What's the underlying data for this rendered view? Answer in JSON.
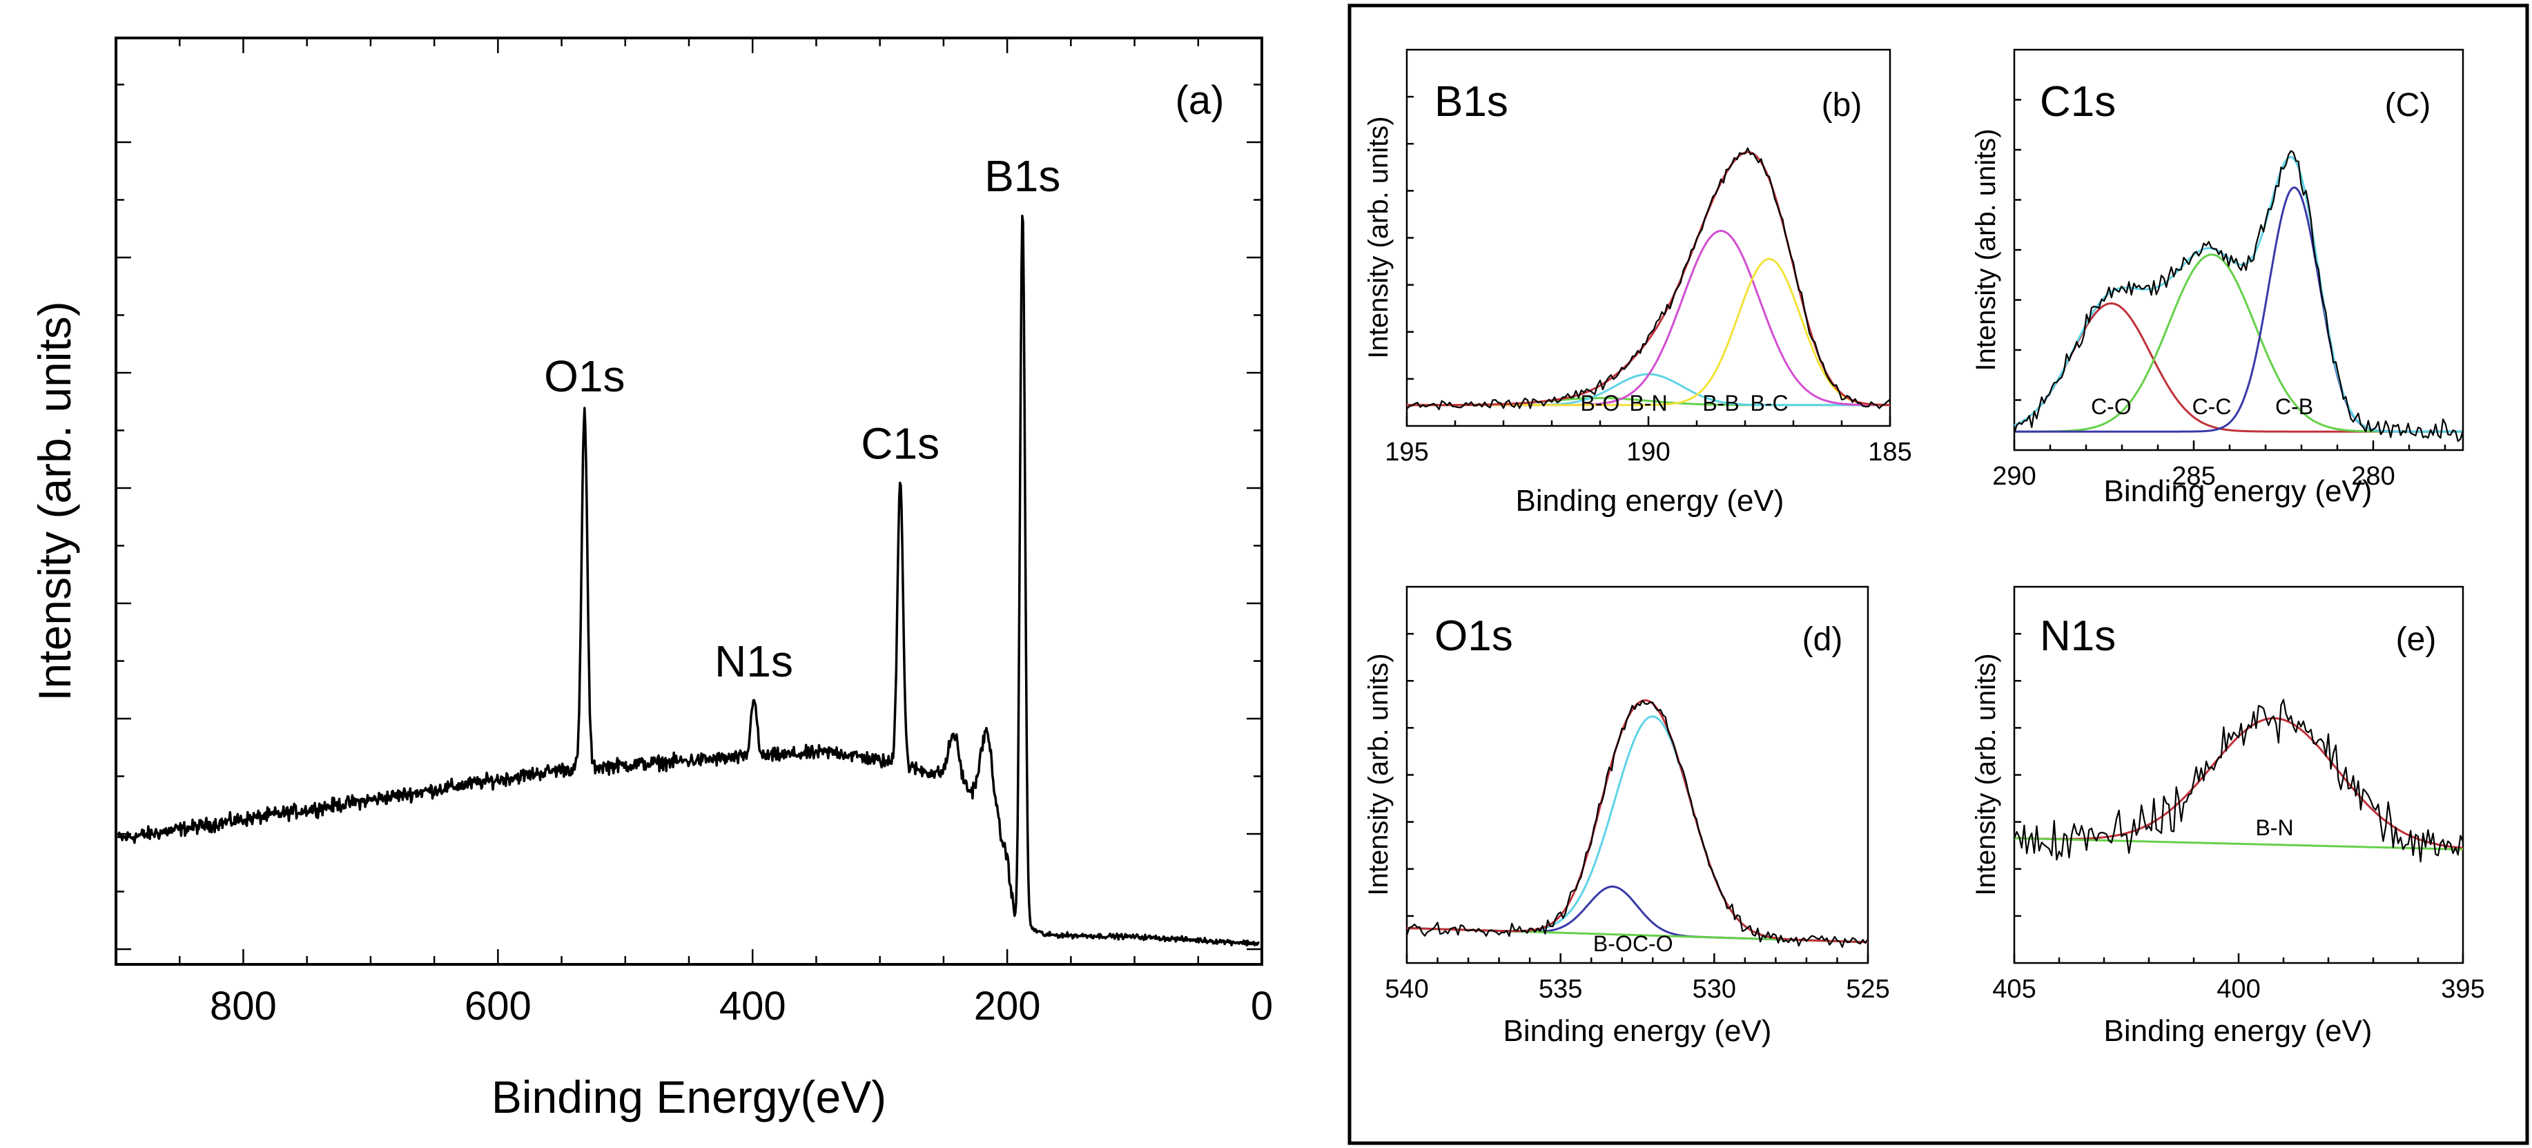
{
  "colors": {
    "spectrum": "#000000",
    "fit_red": "#c0323a",
    "fit_magenta": "#d24fd2",
    "fit_yellow": "#f2e23a",
    "fit_cyan": "#5fd3e6",
    "fit_green": "#66d04a",
    "fit_blue": "#3a3aa8"
  },
  "chart_data": [
    {
      "id": "a",
      "type": "line",
      "panel_label": "(a)",
      "xlabel": "Binding Energy(eV)",
      "ylabel": "Intensity (arb. units)",
      "xlim": [
        900,
        0
      ],
      "ylim": [
        0,
        1.0
      ],
      "x_ticks": [
        800,
        600,
        400,
        200,
        0
      ],
      "x_tick_labels": [
        "800",
        "600",
        "400",
        "200",
        "0"
      ],
      "background": [
        [
          900,
          0.12
        ],
        [
          700,
          0.165
        ],
        [
          550,
          0.2
        ],
        [
          450,
          0.21
        ],
        [
          335,
          0.22
        ],
        [
          300,
          0.21
        ],
        [
          240,
          0.19
        ],
        [
          215,
          0.15
        ],
        [
          200,
          0.1
        ],
        [
          192,
          0.0
        ],
        [
          185,
          0.02
        ],
        [
          170,
          0.01
        ],
        [
          100,
          0.008
        ],
        [
          0,
          0.0
        ]
      ],
      "peaks": [
        {
          "label": "O1s",
          "x": 532,
          "height": 0.41,
          "width": 2.2
        },
        {
          "label": "N1s",
          "x": 399,
          "height": 0.07,
          "width": 2.2
        },
        {
          "label": "C1s",
          "x": 284,
          "height": 0.33,
          "width": 2.2
        },
        {
          "label": "B1s",
          "x": 188,
          "height": 0.83,
          "width": 2.0
        },
        {
          "label": "",
          "x": 242,
          "height": 0.05,
          "width": 4
        },
        {
          "label": "",
          "x": 216,
          "height": 0.09,
          "width": 5
        }
      ],
      "noise_amplitude": 0.012,
      "peak_labels": [
        "O1s",
        "N1s",
        "C1s",
        "B1s"
      ]
    },
    {
      "id": "b",
      "type": "line",
      "title": "B1s",
      "panel_label": "(b)",
      "xlabel": "Binding energy (eV)",
      "ylabel": "Intensity (arb. units)",
      "xlim": [
        195,
        185
      ],
      "ylim": [
        0,
        1.0
      ],
      "x_ticks": [
        195,
        190,
        185
      ],
      "x_tick_labels": [
        "195",
        "190",
        "185"
      ],
      "baseline": 0.03,
      "components": [
        {
          "name": "B-O",
          "center": 191.0,
          "height": 0.025,
          "width": 1.0,
          "color": "fit_green"
        },
        {
          "name": "B-N",
          "center": 190.0,
          "height": 0.11,
          "width": 0.7,
          "color": "fit_cyan"
        },
        {
          "name": "B-B",
          "center": 188.5,
          "height": 0.62,
          "width": 0.8,
          "color": "fit_magenta"
        },
        {
          "name": "B-C",
          "center": 187.5,
          "height": 0.52,
          "width": 0.65,
          "color": "fit_yellow"
        }
      ],
      "envelope_color": "fit_red",
      "component_labels": [
        "B-O",
        "B-N",
        "B-B",
        "B-C"
      ],
      "noise_amplitude": 0.03
    },
    {
      "id": "c",
      "type": "line",
      "title": "C1s",
      "panel_label": "(C)",
      "xlabel": "Binding energy (eV)",
      "ylabel": "Intensity (arb. units)",
      "xlim": [
        290,
        277.5
      ],
      "ylim": [
        0,
        1.0
      ],
      "x_ticks": [
        290,
        285,
        280
      ],
      "x_tick_labels": [
        "290",
        "285",
        "280"
      ],
      "baseline": 0.02,
      "components": [
        {
          "name": "C-O",
          "center": 287.3,
          "height": 0.42,
          "width": 1.1,
          "color": "fit_red"
        },
        {
          "name": "C-C",
          "center": 284.5,
          "height": 0.58,
          "width": 1.2,
          "color": "fit_green"
        },
        {
          "name": "C-B",
          "center": 282.2,
          "height": 0.8,
          "width": 0.7,
          "color": "fit_blue"
        }
      ],
      "envelope_color": "fit_cyan",
      "component_labels": [
        "C-O",
        "C-C",
        "C-B"
      ],
      "noise_amplitude": 0.05
    },
    {
      "id": "d",
      "type": "line",
      "title": "O1s",
      "panel_label": "(d)",
      "xlabel": "Binding energy (eV)",
      "ylabel": "Intensity (arb. units)",
      "xlim": [
        540,
        525
      ],
      "ylim": [
        0,
        1.0
      ],
      "x_ticks": [
        540,
        535,
        530,
        525
      ],
      "x_tick_labels": [
        "540",
        "535",
        "530",
        "525"
      ],
      "baseline": 0.08,
      "baseline_end": 0.03,
      "components": [
        {
          "name": "B-O",
          "center": 533.3,
          "height": 0.17,
          "width": 0.8,
          "color": "fit_blue"
        },
        {
          "name": "C-O",
          "center": 532.0,
          "height": 0.78,
          "width": 1.25,
          "color": "fit_cyan"
        }
      ],
      "envelope_color": "fit_red",
      "baseline_color": "fit_green",
      "component_labels": [
        "B-O",
        "C-O"
      ],
      "noise_amplitude": 0.035
    },
    {
      "id": "e",
      "type": "line",
      "title": "N1s",
      "panel_label": "(e)",
      "xlabel": "Binding energy (eV)",
      "ylabel": "Intensity (arb. units)",
      "xlim": [
        405,
        395
      ],
      "ylim": [
        0,
        1.0
      ],
      "x_ticks": [
        405,
        400,
        395
      ],
      "x_tick_labels": [
        "405",
        "400",
        "395"
      ],
      "baseline": 0.4,
      "baseline_end": 0.36,
      "components": [
        {
          "name": "B-N",
          "center": 399.2,
          "height": 0.45,
          "width": 1.4,
          "color": "fit_red"
        }
      ],
      "envelope_color": "fit_red",
      "baseline_color": "fit_green",
      "component_labels": [
        "B-N"
      ],
      "noise_amplitude": 0.12
    }
  ]
}
